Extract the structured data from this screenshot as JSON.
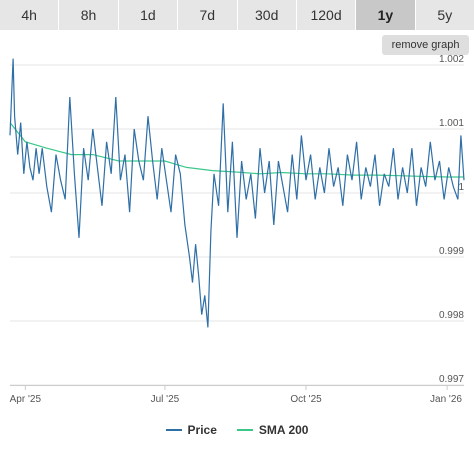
{
  "tabs": [
    {
      "label": "4h",
      "active": false
    },
    {
      "label": "8h",
      "active": false
    },
    {
      "label": "1d",
      "active": false
    },
    {
      "label": "7d",
      "active": false
    },
    {
      "label": "30d",
      "active": false
    },
    {
      "label": "120d",
      "active": false
    },
    {
      "label": "1y",
      "active": true
    },
    {
      "label": "5y",
      "active": false
    }
  ],
  "remove_graph_label": "remove graph",
  "colors": {
    "price": "#2f6fa7",
    "sma": "#3cc78a",
    "grid": "#e6e6e6"
  },
  "chart_data": {
    "type": "line",
    "x_ticks": [
      "Apr '25",
      "Jul '25",
      "Oct '25",
      "Jan '26"
    ],
    "y_ticks": [
      "1.002",
      "1.001",
      "1",
      "0.999",
      "0.998",
      "0.997"
    ],
    "ylim": [
      0.997,
      1.002
    ],
    "xlim": [
      "2025-03-22",
      "2026-01-12"
    ],
    "grid": true,
    "legend_position": "bottom",
    "series": [
      {
        "name": "Price",
        "dates": [
          "2025-03-22",
          "2025-03-24",
          "2025-03-25",
          "2025-03-27",
          "2025-03-29",
          "2025-03-31",
          "2025-04-02",
          "2025-04-04",
          "2025-04-06",
          "2025-04-08",
          "2025-04-10",
          "2025-04-12",
          "2025-04-15",
          "2025-04-18",
          "2025-04-21",
          "2025-04-24",
          "2025-04-27",
          "2025-04-30",
          "2025-05-03",
          "2025-05-06",
          "2025-05-09",
          "2025-05-12",
          "2025-05-15",
          "2025-05-18",
          "2025-05-21",
          "2025-05-24",
          "2025-05-27",
          "2025-05-30",
          "2025-06-02",
          "2025-06-05",
          "2025-06-08",
          "2025-06-11",
          "2025-06-14",
          "2025-06-17",
          "2025-06-20",
          "2025-06-23",
          "2025-06-26",
          "2025-06-29",
          "2025-07-02",
          "2025-07-05",
          "2025-07-08",
          "2025-07-11",
          "2025-07-14",
          "2025-07-17",
          "2025-07-19",
          "2025-07-21",
          "2025-07-23",
          "2025-07-25",
          "2025-07-27",
          "2025-07-29",
          "2025-07-31",
          "2025-08-02",
          "2025-08-05",
          "2025-08-08",
          "2025-08-11",
          "2025-08-14",
          "2025-08-17",
          "2025-08-20",
          "2025-08-23",
          "2025-08-26",
          "2025-08-29",
          "2025-09-01",
          "2025-09-04",
          "2025-09-07",
          "2025-09-10",
          "2025-09-13",
          "2025-09-16",
          "2025-09-19",
          "2025-09-22",
          "2025-09-25",
          "2025-09-28",
          "2025-10-01",
          "2025-10-04",
          "2025-10-07",
          "2025-10-10",
          "2025-10-13",
          "2025-10-16",
          "2025-10-19",
          "2025-10-22",
          "2025-10-25",
          "2025-10-28",
          "2025-10-31",
          "2025-11-03",
          "2025-11-06",
          "2025-11-09",
          "2025-11-12",
          "2025-11-15",
          "2025-11-18",
          "2025-11-21",
          "2025-11-24",
          "2025-11-27",
          "2025-11-30",
          "2025-12-03",
          "2025-12-06",
          "2025-12-09",
          "2025-12-12",
          "2025-12-15",
          "2025-12-18",
          "2025-12-21",
          "2025-12-24",
          "2025-12-27",
          "2025-12-30",
          "2026-01-02",
          "2026-01-05",
          "2026-01-08",
          "2026-01-10",
          "2026-01-12"
        ],
        "values": [
          1.0009,
          1.0021,
          1.0012,
          1.0006,
          1.0011,
          1.0003,
          1.0008,
          1.0004,
          1.0002,
          1.0007,
          1.0003,
          1.0007,
          1.0001,
          0.9997,
          1.0006,
          1.0002,
          0.9999,
          1.0015,
          1.0003,
          0.9993,
          1.0007,
          1.0002,
          1.001,
          1.0004,
          0.9998,
          1.0008,
          1.0003,
          1.0015,
          1.0002,
          1.0006,
          0.9997,
          1.001,
          1.0005,
          1.0002,
          1.0012,
          1.0005,
          0.9999,
          1.0007,
          1.0002,
          0.9997,
          1.0006,
          1.0003,
          0.9995,
          0.999,
          0.9986,
          0.9992,
          0.9987,
          0.9981,
          0.9984,
          0.9979,
          0.9994,
          1.0003,
          0.9998,
          1.0014,
          0.9997,
          1.0008,
          0.9993,
          1.0005,
          0.9999,
          1.0003,
          0.9996,
          1.0007,
          1.0,
          1.0005,
          0.9995,
          1.0005,
          1.0001,
          0.9997,
          1.0006,
          0.9999,
          1.0009,
          1.0002,
          1.0006,
          0.9999,
          1.0004,
          1.0,
          1.0007,
          1.0001,
          1.0004,
          0.9998,
          1.0006,
          1.0002,
          1.0008,
          0.9999,
          1.0004,
          1.0001,
          1.0006,
          0.9998,
          1.0003,
          1.0001,
          1.0007,
          0.9999,
          1.0004,
          1.0,
          1.0007,
          0.9998,
          1.0004,
          1.0001,
          1.0008,
          1.0002,
          1.0005,
          0.9999,
          1.0004,
          1.0001,
          0.9999,
          1.0009,
          1.0002
        ]
      },
      {
        "name": "SMA 200",
        "dates": [
          "2025-03-22",
          "2025-04-01",
          "2025-04-15",
          "2025-05-01",
          "2025-05-15",
          "2025-06-01",
          "2025-06-15",
          "2025-07-01",
          "2025-07-15",
          "2025-08-01",
          "2025-08-15",
          "2025-09-01",
          "2025-09-15",
          "2025-10-01",
          "2025-10-15",
          "2025-11-01",
          "2025-11-15",
          "2025-12-01",
          "2025-12-15",
          "2026-01-01",
          "2026-01-12"
        ],
        "values": [
          1.0011,
          1.0008,
          1.0007,
          1.0006,
          1.0006,
          1.0005,
          1.0005,
          1.0005,
          1.0004,
          1.00035,
          1.00033,
          1.0003,
          1.00032,
          1.0003,
          1.0003,
          1.00028,
          1.00028,
          1.00027,
          1.00026,
          1.00025,
          1.00025
        ]
      }
    ]
  }
}
